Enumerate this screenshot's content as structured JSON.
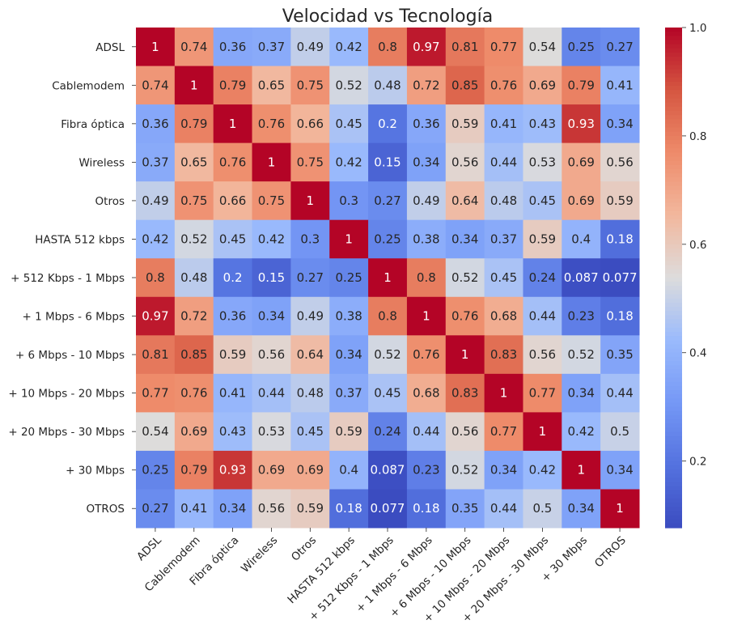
{
  "chart_data": {
    "type": "heatmap",
    "title": "Velocidad vs Tecnología",
    "xlabel": "",
    "ylabel": "",
    "colormap": "coolwarm",
    "colors": {
      "low": "#3b4cc0",
      "mid": "#dddddd",
      "high": "#b40426"
    },
    "categories": [
      "ADSL",
      "Cablemodem",
      "Fibra óptica",
      "Wireless",
      "Otros",
      "HASTA 512 kbps",
      "+ 512 Kbps - 1 Mbps",
      "+ 1 Mbps - 6 Mbps",
      "+ 6 Mbps - 10 Mbps",
      "+ 10 Mbps - 20 Mbps",
      "+ 20 Mbps - 30 Mbps",
      "+ 30 Mbps",
      "OTROS"
    ],
    "values": [
      [
        1,
        0.74,
        0.36,
        0.37,
        0.49,
        0.42,
        0.8,
        0.97,
        0.81,
        0.77,
        0.54,
        0.25,
        0.27
      ],
      [
        0.74,
        1,
        0.79,
        0.65,
        0.75,
        0.52,
        0.48,
        0.72,
        0.85,
        0.76,
        0.69,
        0.79,
        0.41
      ],
      [
        0.36,
        0.79,
        1,
        0.76,
        0.66,
        0.45,
        0.2,
        0.36,
        0.59,
        0.41,
        0.43,
        0.93,
        0.34
      ],
      [
        0.37,
        0.65,
        0.76,
        1,
        0.75,
        0.42,
        0.15,
        0.34,
        0.56,
        0.44,
        0.53,
        0.69,
        0.56
      ],
      [
        0.49,
        0.75,
        0.66,
        0.75,
        1,
        0.3,
        0.27,
        0.49,
        0.64,
        0.48,
        0.45,
        0.69,
        0.59
      ],
      [
        0.42,
        0.52,
        0.45,
        0.42,
        0.3,
        1,
        0.25,
        0.38,
        0.34,
        0.37,
        0.59,
        0.4,
        0.18
      ],
      [
        0.8,
        0.48,
        0.2,
        0.15,
        0.27,
        0.25,
        1,
        0.8,
        0.52,
        0.45,
        0.24,
        0.087,
        0.077
      ],
      [
        0.97,
        0.72,
        0.36,
        0.34,
        0.49,
        0.38,
        0.8,
        1,
        0.76,
        0.68,
        0.44,
        0.23,
        0.18
      ],
      [
        0.81,
        0.85,
        0.59,
        0.56,
        0.64,
        0.34,
        0.52,
        0.76,
        1,
        0.83,
        0.56,
        0.52,
        0.35
      ],
      [
        0.77,
        0.76,
        0.41,
        0.44,
        0.48,
        0.37,
        0.45,
        0.68,
        0.83,
        1,
        0.77,
        0.34,
        0.44
      ],
      [
        0.54,
        0.69,
        0.43,
        0.53,
        0.45,
        0.59,
        0.24,
        0.44,
        0.56,
        0.77,
        1,
        0.42,
        0.5
      ],
      [
        0.25,
        0.79,
        0.93,
        0.69,
        0.69,
        0.4,
        0.087,
        0.23,
        0.52,
        0.34,
        0.42,
        1,
        0.34
      ],
      [
        0.27,
        0.41,
        0.34,
        0.56,
        0.59,
        0.18,
        0.077,
        0.18,
        0.35,
        0.44,
        0.5,
        0.34,
        1
      ]
    ],
    "colorbar": {
      "vmin": 0.077,
      "vmax": 1,
      "ticks": [
        0.2,
        0.4,
        0.6,
        0.8,
        1.0
      ],
      "tick_labels": [
        "0.2",
        "0.4",
        "0.6",
        "0.8",
        "1.0"
      ]
    },
    "grid": false,
    "legend": "colorbar-right"
  }
}
